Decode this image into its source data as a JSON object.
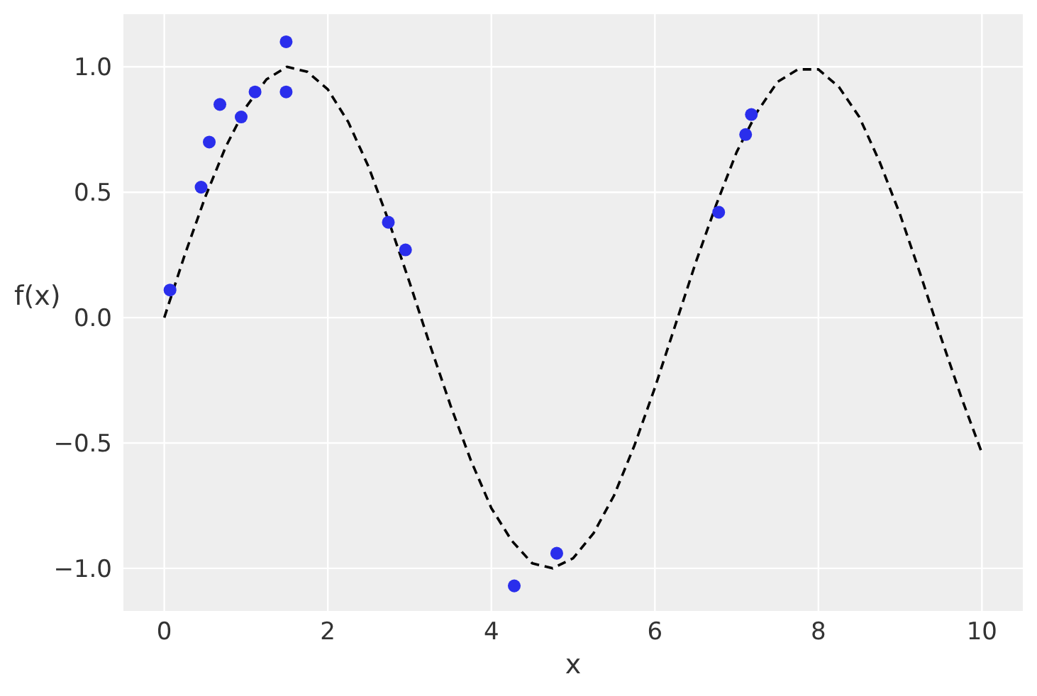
{
  "chart_data": {
    "type": "scatter",
    "xlabel": "x",
    "ylabel": "f(x)",
    "xlim": [
      -0.5,
      10.5
    ],
    "ylim": [
      -1.17,
      1.21
    ],
    "xticks": [
      0,
      2,
      4,
      6,
      8,
      10
    ],
    "yticks": [
      {
        "value": -1,
        "label": "−1.0"
      },
      {
        "value": -0.5,
        "label": "−0.5"
      },
      {
        "value": 0,
        "label": "0.0"
      },
      {
        "value": 0.5,
        "label": "0.5"
      },
      {
        "value": 1,
        "label": "1.0"
      }
    ],
    "grid": true,
    "series": [
      {
        "type": "line",
        "color": "#000000",
        "line_style": "dashed",
        "marker": "none",
        "x": [
          0,
          0.25,
          0.5,
          0.75,
          1,
          1.25,
          1.5,
          1.75,
          2,
          2.25,
          2.5,
          2.75,
          3,
          3.25,
          3.5,
          3.75,
          4,
          4.25,
          4.5,
          4.75,
          5,
          5.25,
          5.5,
          5.75,
          6,
          6.25,
          6.5,
          6.75,
          7,
          7.25,
          7.5,
          7.75,
          8,
          8.25,
          8.5,
          8.75,
          9,
          9.25,
          9.5,
          9.75,
          10
        ],
        "values": [
          0,
          0.25,
          0.48,
          0.68,
          0.84,
          0.95,
          1.0,
          0.98,
          0.91,
          0.78,
          0.6,
          0.38,
          0.14,
          -0.11,
          -0.35,
          -0.57,
          -0.76,
          -0.89,
          -0.98,
          -1.0,
          -0.96,
          -0.86,
          -0.71,
          -0.51,
          -0.28,
          -0.03,
          0.22,
          0.45,
          0.66,
          0.82,
          0.94,
          0.99,
          0.99,
          0.92,
          0.8,
          0.62,
          0.41,
          0.17,
          -0.08,
          -0.32,
          -0.54
        ]
      },
      {
        "color": "#2a2eec",
        "marker": "circle",
        "x": [
          0.07,
          0.45,
          0.55,
          0.68,
          0.94,
          1.11,
          1.49,
          1.49,
          2.74,
          2.95,
          4.28,
          4.8,
          6.78,
          7.11,
          7.18
        ],
        "values": [
          0.11,
          0.52,
          0.7,
          0.85,
          0.8,
          0.9,
          1.1,
          0.9,
          0.38,
          0.27,
          -1.07,
          -0.94,
          0.42,
          0.73,
          0.81
        ]
      }
    ]
  }
}
